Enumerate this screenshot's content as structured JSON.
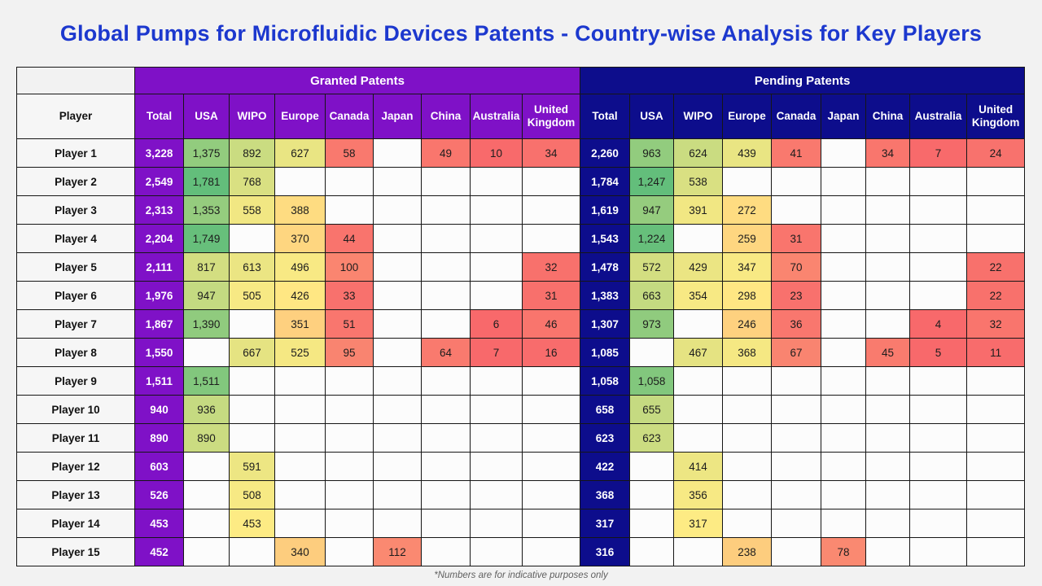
{
  "title": "Global Pumps for Microfluidic Devices Patents - Country-wise Analysis for Key Players",
  "footnote": "*Numbers are for indicative purposes only",
  "colors": {
    "title_blue": "#1C38CE",
    "banner_purple": "#7F11C7",
    "banner_navy": "#0D0D8C",
    "scale_low": "#F8696B",
    "scale_mid": "#FFEB84",
    "scale_high": "#63BE7B",
    "empty_cell": "#FCFCFC"
  },
  "chart_data": {
    "type": "heatmap",
    "title": "Global Pumps for Microfluidic Devices Patents - Country-wise Analysis for Key Players",
    "sections": [
      {
        "label": "Granted Patents",
        "columns": [
          "Total",
          "USA",
          "WIPO",
          "Europe",
          "Canada",
          "Japan",
          "China",
          "Australia",
          "United Kingdom"
        ]
      },
      {
        "label": "Pending Patents",
        "columns": [
          "Total",
          "USA",
          "WIPO",
          "Europe",
          "Canada",
          "Japan",
          "China",
          "Australia",
          "United Kingdom"
        ]
      }
    ],
    "player_header": "Player",
    "rows": [
      {
        "player": "Player 1",
        "granted": [
          "3,228",
          "1,375",
          "892",
          "627",
          "58",
          "",
          "49",
          "10",
          "34"
        ],
        "pending": [
          "2,260",
          "963",
          "624",
          "439",
          "41",
          "",
          "34",
          "7",
          "24"
        ]
      },
      {
        "player": "Player 2",
        "granted": [
          "2,549",
          "1,781",
          "768",
          "",
          "",
          "",
          "",
          "",
          ""
        ],
        "pending": [
          "1,784",
          "1,247",
          "538",
          "",
          "",
          "",
          "",
          "",
          ""
        ]
      },
      {
        "player": "Player 3",
        "granted": [
          "2,313",
          "1,353",
          "558",
          "388",
          "",
          "",
          "",
          "",
          ""
        ],
        "pending": [
          "1,619",
          "947",
          "391",
          "272",
          "",
          "",
          "",
          "",
          ""
        ]
      },
      {
        "player": "Player 4",
        "granted": [
          "2,204",
          "1,749",
          "",
          "370",
          "44",
          "",
          "",
          "",
          ""
        ],
        "pending": [
          "1,543",
          "1,224",
          "",
          "259",
          "31",
          "",
          "",
          "",
          ""
        ]
      },
      {
        "player": "Player 5",
        "granted": [
          "2,111",
          "817",
          "613",
          "496",
          "100",
          "",
          "",
          "",
          "32"
        ],
        "pending": [
          "1,478",
          "572",
          "429",
          "347",
          "70",
          "",
          "",
          "",
          "22"
        ]
      },
      {
        "player": "Player 6",
        "granted": [
          "1,976",
          "947",
          "505",
          "426",
          "33",
          "",
          "",
          "",
          "31"
        ],
        "pending": [
          "1,383",
          "663",
          "354",
          "298",
          "23",
          "",
          "",
          "",
          "22"
        ]
      },
      {
        "player": "Player 7",
        "granted": [
          "1,867",
          "1,390",
          "",
          "351",
          "51",
          "",
          "",
          "6",
          "46"
        ],
        "pending": [
          "1,307",
          "973",
          "",
          "246",
          "36",
          "",
          "",
          "4",
          "32"
        ]
      },
      {
        "player": "Player 8",
        "granted": [
          "1,550",
          "",
          "667",
          "525",
          "95",
          "",
          "64",
          "7",
          "16"
        ],
        "pending": [
          "1,085",
          "",
          "467",
          "368",
          "67",
          "",
          "45",
          "5",
          "11"
        ]
      },
      {
        "player": "Player 9",
        "granted": [
          "1,511",
          "1,511",
          "",
          "",
          "",
          "",
          "",
          "",
          ""
        ],
        "pending": [
          "1,058",
          "1,058",
          "",
          "",
          "",
          "",
          "",
          "",
          ""
        ]
      },
      {
        "player": "Player 10",
        "granted": [
          "940",
          "936",
          "",
          "",
          "",
          "",
          "",
          "",
          ""
        ],
        "pending": [
          "658",
          "655",
          "",
          "",
          "",
          "",
          "",
          "",
          ""
        ]
      },
      {
        "player": "Player 11",
        "granted": [
          "890",
          "890",
          "",
          "",
          "",
          "",
          "",
          "",
          ""
        ],
        "pending": [
          "623",
          "623",
          "",
          "",
          "",
          "",
          "",
          "",
          ""
        ]
      },
      {
        "player": "Player 12",
        "granted": [
          "603",
          "",
          "591",
          "",
          "",
          "",
          "",
          "",
          ""
        ],
        "pending": [
          "422",
          "",
          "414",
          "",
          "",
          "",
          "",
          "",
          ""
        ]
      },
      {
        "player": "Player 13",
        "granted": [
          "526",
          "",
          "508",
          "",
          "",
          "",
          "",
          "",
          ""
        ],
        "pending": [
          "368",
          "",
          "356",
          "",
          "",
          "",
          "",
          "",
          ""
        ]
      },
      {
        "player": "Player 14",
        "granted": [
          "453",
          "",
          "453",
          "",
          "",
          "",
          "",
          "",
          ""
        ],
        "pending": [
          "317",
          "",
          "317",
          "",
          "",
          "",
          "",
          "",
          ""
        ]
      },
      {
        "player": "Player 15",
        "granted": [
          "452",
          "",
          "",
          "340",
          "",
          "112",
          "",
          "",
          ""
        ],
        "pending": [
          "316",
          "",
          "",
          "238",
          "",
          "78",
          "",
          "",
          ""
        ]
      }
    ]
  }
}
